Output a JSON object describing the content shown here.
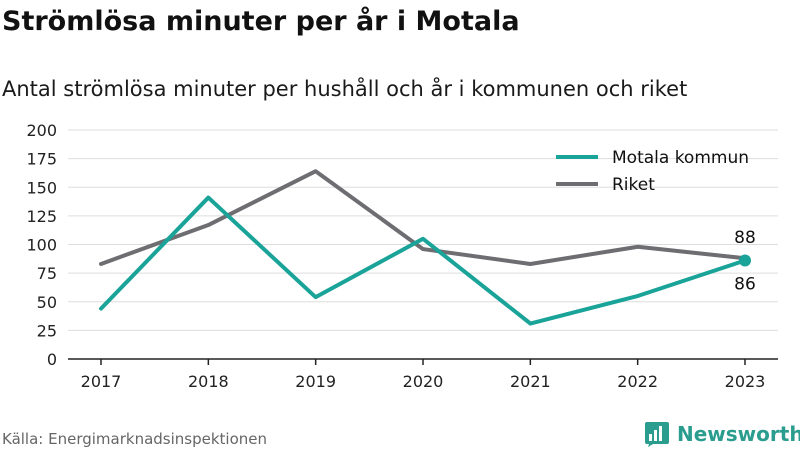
{
  "title": "Strömlösa minuter per år i Motala",
  "subtitle": "Antal strömlösa minuter per hushåll och år i kommunen och riket",
  "source": "Källa: Energimarknadsinspektionen",
  "brand": {
    "name": "Newsworthy",
    "color": "#2a9d8f"
  },
  "chart_data": {
    "type": "line",
    "title": "Strömlösa minuter per år i Motala",
    "subtitle": "Antal strömlösa minuter per hushåll och år i kommunen och riket",
    "x": [
      "2017",
      "2018",
      "2019",
      "2020",
      "2021",
      "2022",
      "2023"
    ],
    "yticks": [
      0,
      25,
      50,
      75,
      100,
      125,
      150,
      175,
      200
    ],
    "ylim": [
      0,
      200
    ],
    "grid": true,
    "legend": "top-right",
    "series": [
      {
        "name": "Motala kommun",
        "color": "#1aa398",
        "values": [
          44,
          141,
          54,
          105,
          31,
          55,
          86
        ],
        "end_label": "86"
      },
      {
        "name": "Riket",
        "color": "#6d6d72",
        "values": [
          83,
          117,
          164,
          96,
          83,
          98,
          88
        ],
        "end_label": "88"
      }
    ]
  }
}
